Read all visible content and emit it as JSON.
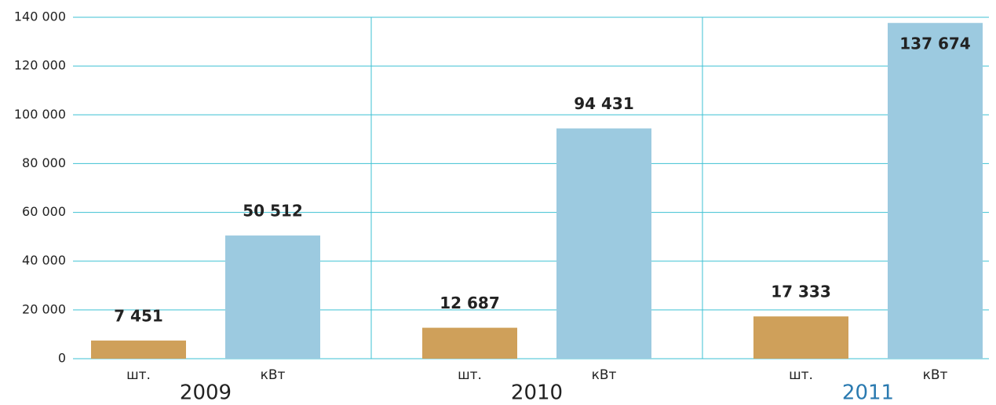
{
  "chart_data": {
    "type": "bar",
    "categories": [
      "2009",
      "2010",
      "2011"
    ],
    "series": [
      {
        "name": "шт.",
        "color": "#cfa05a",
        "values": [
          7451,
          12687,
          17333
        ],
        "value_labels": [
          "7 451",
          "12 687",
          "17 333"
        ]
      },
      {
        "name": "кВт",
        "color": "#9ccae0",
        "values": [
          50512,
          94431,
          137674
        ],
        "value_labels": [
          "50 512",
          "94 431",
          "137 674"
        ]
      }
    ],
    "ylim": [
      0,
      140000
    ],
    "yticks": [
      0,
      {
        "value": 20000,
        "label": "20 000"
      },
      {
        "value": 40000,
        "label": "40 000"
      },
      {
        "value": 60000,
        "label": "60 000"
      },
      {
        "value": 80000,
        "label": "80 000"
      },
      {
        "value": 100000,
        "label": "100 000"
      },
      {
        "value": 120000,
        "label": "120 000"
      },
      {
        "value": 140000,
        "label": "140 000"
      }
    ],
    "grid": true,
    "grid_color": "#3ec1d3",
    "highlight": {
      "index": 2,
      "color": "#2a7ab0"
    }
  }
}
